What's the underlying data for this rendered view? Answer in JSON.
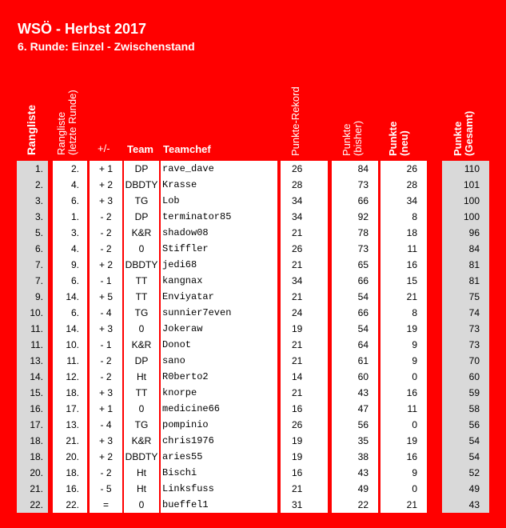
{
  "title": "WSÖ - Herbst 2017",
  "subtitle": "6. Runde: Einzel - Zwischenstand",
  "headers": {
    "rangliste": "Rangliste",
    "rangliste_letzte_1": "Rangliste",
    "rangliste_letzte_2": "(letzte Runde)",
    "diff": "+/-",
    "team": "Team",
    "teamchef": "Teamchef",
    "punkte_rekord": "Punkte-Rekord",
    "punkte_bisher_1": "Punkte",
    "punkte_bisher_2": "(bisher)",
    "punkte_neu_1": "Punkte",
    "punkte_neu_2": "(neu)",
    "punkte_gesamt_1": "Punkte",
    "punkte_gesamt_2": "(Gesamt)"
  },
  "rows": [
    {
      "rank": "1.",
      "prev": "2.",
      "diff": "+ 1",
      "team": "DP",
      "chef": "rave_dave",
      "rekord": "26",
      "bisher": "84",
      "neu": "26",
      "gesamt": "110"
    },
    {
      "rank": "2.",
      "prev": "4.",
      "diff": "+ 2",
      "team": "DBDTY",
      "chef": "Krasse",
      "rekord": "28",
      "bisher": "73",
      "neu": "28",
      "gesamt": "101"
    },
    {
      "rank": "3.",
      "prev": "6.",
      "diff": "+ 3",
      "team": "TG",
      "chef": "Lob",
      "rekord": "34",
      "bisher": "66",
      "neu": "34",
      "gesamt": "100"
    },
    {
      "rank": "3.",
      "prev": "1.",
      "diff": "- 2",
      "team": "DP",
      "chef": "terminator85",
      "rekord": "34",
      "bisher": "92",
      "neu": "8",
      "gesamt": "100"
    },
    {
      "rank": "5.",
      "prev": "3.",
      "diff": "- 2",
      "team": "K&R",
      "chef": "shadow08",
      "rekord": "21",
      "bisher": "78",
      "neu": "18",
      "gesamt": "96"
    },
    {
      "rank": "6.",
      "prev": "4.",
      "diff": "- 2",
      "team": "0",
      "chef": "Stiffler",
      "rekord": "26",
      "bisher": "73",
      "neu": "11",
      "gesamt": "84"
    },
    {
      "rank": "7.",
      "prev": "9.",
      "diff": "+ 2",
      "team": "DBDTY",
      "chef": "jedi68",
      "rekord": "21",
      "bisher": "65",
      "neu": "16",
      "gesamt": "81"
    },
    {
      "rank": "7.",
      "prev": "6.",
      "diff": "- 1",
      "team": "TT",
      "chef": "kangnax",
      "rekord": "34",
      "bisher": "66",
      "neu": "15",
      "gesamt": "81"
    },
    {
      "rank": "9.",
      "prev": "14.",
      "diff": "+ 5",
      "team": "TT",
      "chef": "Enviyatar",
      "rekord": "21",
      "bisher": "54",
      "neu": "21",
      "gesamt": "75"
    },
    {
      "rank": "10.",
      "prev": "6.",
      "diff": "- 4",
      "team": "TG",
      "chef": "sunnier7even",
      "rekord": "24",
      "bisher": "66",
      "neu": "8",
      "gesamt": "74"
    },
    {
      "rank": "11.",
      "prev": "14.",
      "diff": "+ 3",
      "team": "0",
      "chef": "Jokeraw",
      "rekord": "19",
      "bisher": "54",
      "neu": "19",
      "gesamt": "73"
    },
    {
      "rank": "11.",
      "prev": "10.",
      "diff": "- 1",
      "team": "K&R",
      "chef": "Donot",
      "rekord": "21",
      "bisher": "64",
      "neu": "9",
      "gesamt": "73"
    },
    {
      "rank": "13.",
      "prev": "11.",
      "diff": "- 2",
      "team": "DP",
      "chef": "sano",
      "rekord": "21",
      "bisher": "61",
      "neu": "9",
      "gesamt": "70"
    },
    {
      "rank": "14.",
      "prev": "12.",
      "diff": "- 2",
      "team": "Ht",
      "chef": "R0berto2",
      "rekord": "14",
      "bisher": "60",
      "neu": "0",
      "gesamt": "60"
    },
    {
      "rank": "15.",
      "prev": "18.",
      "diff": "+ 3",
      "team": "TT",
      "chef": "knorpe",
      "rekord": "21",
      "bisher": "43",
      "neu": "16",
      "gesamt": "59"
    },
    {
      "rank": "16.",
      "prev": "17.",
      "diff": "+ 1",
      "team": "0",
      "chef": "medicine66",
      "rekord": "16",
      "bisher": "47",
      "neu": "11",
      "gesamt": "58"
    },
    {
      "rank": "17.",
      "prev": "13.",
      "diff": "- 4",
      "team": "TG",
      "chef": "pompinio",
      "rekord": "26",
      "bisher": "56",
      "neu": "0",
      "gesamt": "56"
    },
    {
      "rank": "18.",
      "prev": "21.",
      "diff": "+ 3",
      "team": "K&R",
      "chef": "chris1976",
      "rekord": "19",
      "bisher": "35",
      "neu": "19",
      "gesamt": "54"
    },
    {
      "rank": "18.",
      "prev": "20.",
      "diff": "+ 2",
      "team": "DBDTY",
      "chef": "aries55",
      "rekord": "19",
      "bisher": "38",
      "neu": "16",
      "gesamt": "54"
    },
    {
      "rank": "20.",
      "prev": "18.",
      "diff": "- 2",
      "team": "Ht",
      "chef": "Bischi",
      "rekord": "16",
      "bisher": "43",
      "neu": "9",
      "gesamt": "52"
    },
    {
      "rank": "21.",
      "prev": "16.",
      "diff": "- 5",
      "team": "Ht",
      "chef": "Linksfuss",
      "rekord": "21",
      "bisher": "49",
      "neu": "0",
      "gesamt": "49"
    },
    {
      "rank": "22.",
      "prev": "22.",
      "diff": "=",
      "team": "0",
      "chef": "bueffel1",
      "rekord": "31",
      "bisher": "22",
      "neu": "21",
      "gesamt": "43"
    }
  ],
  "colors": {
    "background": "#ff0000",
    "header_text": "#ffffff",
    "grey_cell": "#d9d9d9",
    "white_cell": "#ffffff"
  }
}
